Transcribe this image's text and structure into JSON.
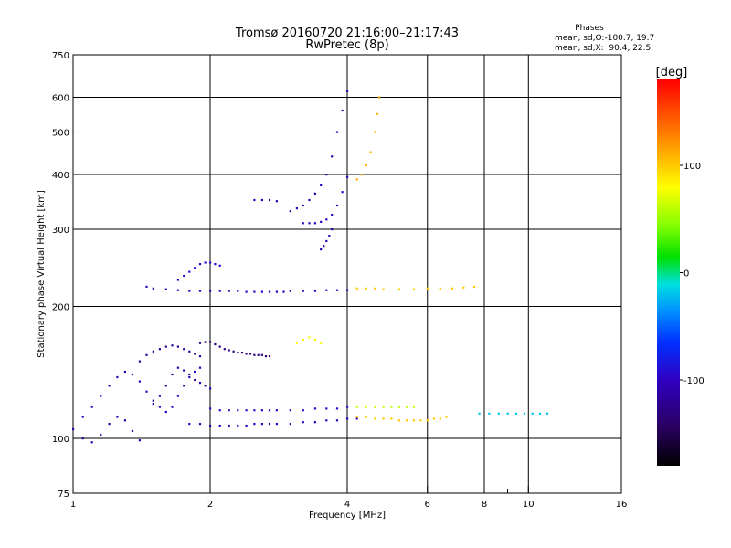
{
  "chart_data": {
    "type": "scatter",
    "title": "Tromsø 20160720 21:16:00–21:17:43",
    "subtitle": "RwPretec (8p)",
    "xlabel": "Frequency [MHz]",
    "ylabel": "Stationary phase Virtual Height [km]",
    "x_scale": "log",
    "y_scale": "log",
    "xlim": [
      1,
      16
    ],
    "ylim": [
      75,
      750
    ],
    "x_ticks": [
      1,
      2,
      4,
      6,
      8,
      10,
      16
    ],
    "x_minor_ticks": [
      9
    ],
    "y_ticks": [
      75,
      100,
      200,
      300,
      400,
      500,
      600,
      750
    ],
    "grid": true,
    "stats": {
      "heading": "Phases",
      "o_line": "mean, sd,O:-100.7, 19.7",
      "x_line": "mean, sd,X:  90.4, 22.5"
    },
    "colorbar": {
      "label": "[deg]",
      "range": [
        -180,
        180
      ],
      "ticks": [
        100,
        0,
        -100
      ],
      "placement": "right"
    },
    "traces": [
      {
        "freq": [
          1.0,
          1.05,
          1.1,
          1.15,
          1.2,
          1.25,
          1.3,
          1.35,
          1.4
        ],
        "height": [
          105,
          100,
          98,
          102,
          108,
          112,
          110,
          104,
          99
        ],
        "phase": -110
      },
      {
        "freq": [
          1.05,
          1.1,
          1.15,
          1.2,
          1.25,
          1.3,
          1.35,
          1.4,
          1.45,
          1.5,
          1.55,
          1.6,
          1.65,
          1.7,
          1.75,
          1.8,
          1.85,
          1.9
        ],
        "height": [
          112,
          118,
          125,
          132,
          138,
          142,
          140,
          135,
          128,
          122,
          118,
          115,
          118,
          125,
          132,
          138,
          142,
          145
        ],
        "phase": -100
      },
      {
        "freq": [
          1.4,
          1.45,
          1.5,
          1.55,
          1.6,
          1.65,
          1.7,
          1.75,
          1.8,
          1.85,
          1.9
        ],
        "height": [
          150,
          155,
          158,
          160,
          162,
          163,
          162,
          160,
          158,
          156,
          154
        ],
        "phase": -120
      },
      {
        "freq": [
          1.5,
          1.55,
          1.6,
          1.65,
          1.7,
          1.75,
          1.8,
          1.85,
          1.9,
          1.95,
          2.0
        ],
        "height": [
          120,
          125,
          132,
          140,
          145,
          143,
          140,
          136,
          134,
          132,
          130
        ],
        "phase": -110
      },
      {
        "freq": [
          1.9,
          1.95,
          2.0,
          2.05,
          2.1,
          2.15,
          2.2,
          2.25,
          2.3,
          2.35,
          2.4,
          2.45,
          2.5,
          2.55,
          2.6,
          2.65,
          2.7
        ],
        "height": [
          165,
          166,
          166,
          164,
          162,
          160,
          159,
          158,
          157,
          157,
          156,
          156,
          155,
          155,
          155,
          154,
          154
        ],
        "phase": -130
      },
      {
        "freq": [
          1.8,
          1.9,
          2.0,
          2.1,
          2.2,
          2.3,
          2.4,
          2.5,
          2.6,
          2.7,
          2.8,
          3.0,
          3.2,
          3.4,
          3.6,
          3.8,
          4.0,
          4.2
        ],
        "height": [
          108,
          108,
          107,
          107,
          107,
          107,
          107,
          108,
          108,
          108,
          108,
          108,
          109,
          109,
          110,
          110,
          111,
          111
        ],
        "phase": -100
      },
      {
        "freq": [
          2.0,
          2.1,
          2.2,
          2.3,
          2.4,
          2.5,
          2.6,
          2.7,
          2.8,
          3.0,
          3.2,
          3.4,
          3.6,
          3.8,
          4.0
        ],
        "height": [
          117,
          116,
          116,
          116,
          116,
          116,
          116,
          116,
          116,
          116,
          116,
          117,
          117,
          117,
          118
        ],
        "phase": -90
      },
      {
        "freq": [
          4.2,
          4.4,
          4.6,
          4.8,
          5.0,
          5.2,
          5.4,
          5.6,
          5.8,
          6.0,
          6.2,
          6.4,
          6.6
        ],
        "height": [
          112,
          112,
          111,
          111,
          111,
          110,
          110,
          110,
          110,
          110,
          111,
          111,
          112
        ],
        "phase": 100
      },
      {
        "freq": [
          4.2,
          4.4,
          4.6,
          4.8,
          5.0,
          5.2,
          5.4,
          5.6
        ],
        "height": [
          118,
          118,
          118,
          118,
          118,
          118,
          118,
          118
        ],
        "phase": 60
      },
      {
        "freq": [
          7.8,
          8.2,
          8.6,
          9.0,
          9.4,
          9.8,
          10.2,
          10.6,
          11.0
        ],
        "height": [
          114,
          114,
          114,
          114,
          114,
          114,
          114,
          114,
          114
        ],
        "phase": -20
      },
      {
        "freq": [
          1.45,
          1.5,
          1.6,
          1.7,
          1.8,
          1.9,
          2.0,
          2.1,
          2.2,
          2.3,
          2.4,
          2.5,
          2.6,
          2.7,
          2.8,
          2.9,
          3.0,
          3.2,
          3.4,
          3.6,
          3.8,
          4.0
        ],
        "height": [
          222,
          220,
          219,
          218,
          217,
          217,
          217,
          217,
          217,
          217,
          216,
          216,
          216,
          216,
          216,
          216,
          217,
          217,
          217,
          218,
          218,
          218
        ],
        "phase": -100
      },
      {
        "freq": [
          1.7,
          1.75,
          1.8,
          1.85,
          1.9,
          1.95,
          2.0,
          2.05,
          2.1
        ],
        "height": [
          230,
          235,
          240,
          245,
          250,
          252,
          252,
          250,
          248
        ],
        "phase": -90
      },
      {
        "freq": [
          4.2,
          4.4,
          4.6,
          4.8,
          5.2,
          5.6,
          6.0,
          6.4,
          6.8,
          7.2,
          7.6
        ],
        "height": [
          220,
          220,
          220,
          219,
          219,
          219,
          220,
          220,
          220,
          221,
          222
        ],
        "phase": 100
      },
      {
        "freq": [
          2.5,
          2.6,
          2.7,
          2.8,
          3.0,
          3.1,
          3.2,
          3.3,
          3.4,
          3.5,
          3.6,
          3.7,
          3.8,
          3.9,
          4.0
        ],
        "height": [
          350,
          350,
          350,
          348,
          330,
          335,
          340,
          350,
          362,
          378,
          400,
          440,
          500,
          560,
          620
        ],
        "phase": -105
      },
      {
        "freq": [
          3.2,
          3.3,
          3.4,
          3.5,
          3.6,
          3.7,
          3.8,
          3.9,
          4.0
        ],
        "height": [
          310,
          310,
          310,
          312,
          316,
          324,
          340,
          365,
          395
        ],
        "phase": -100
      },
      {
        "freq": [
          3.5,
          3.55,
          3.6,
          3.65,
          3.7
        ],
        "height": [
          270,
          275,
          282,
          290,
          300
        ],
        "phase": -110
      },
      {
        "freq": [
          4.2,
          4.3,
          4.4,
          4.5,
          4.6,
          4.65,
          4.7
        ],
        "height": [
          390,
          400,
          420,
          450,
          500,
          550,
          600
        ],
        "phase": 110
      },
      {
        "freq": [
          3.1,
          3.2,
          3.3,
          3.4,
          3.5
        ],
        "height": [
          165,
          168,
          170,
          168,
          165
        ],
        "phase": 75
      }
    ]
  }
}
